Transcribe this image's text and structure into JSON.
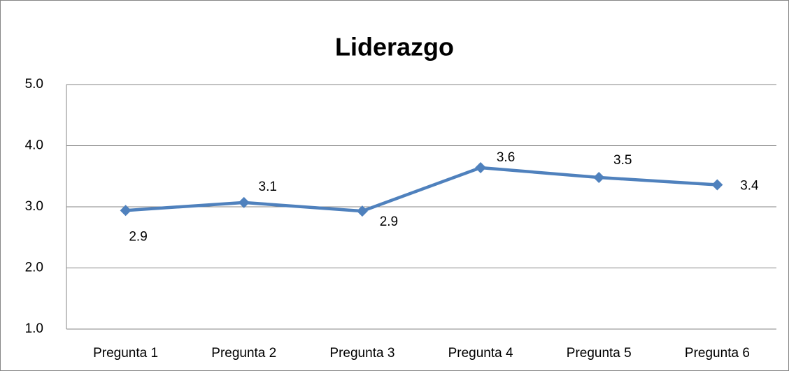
{
  "chart_data": {
    "type": "line",
    "title": "Liderazgo",
    "categories": [
      "Pregunta 1",
      "Pregunta 2",
      "Pregunta 3",
      "Pregunta 4",
      "Pregunta 5",
      "Pregunta 6"
    ],
    "series": [
      {
        "color": "#4f81bd",
        "values": [
          2.94,
          3.07,
          2.93,
          3.64,
          3.48,
          3.36
        ],
        "value_labels": [
          "2.9",
          "3.1",
          "2.9",
          "3.6",
          "3.5",
          "3.4"
        ]
      }
    ],
    "ylim": [
      1,
      5
    ],
    "yticks": [
      {
        "value": 1,
        "label": "1.0"
      },
      {
        "value": 2,
        "label": "2.0"
      },
      {
        "value": 3,
        "label": "3.0"
      },
      {
        "value": 4,
        "label": "4.0"
      },
      {
        "value": 5,
        "label": "5.0"
      }
    ],
    "grid": true
  }
}
